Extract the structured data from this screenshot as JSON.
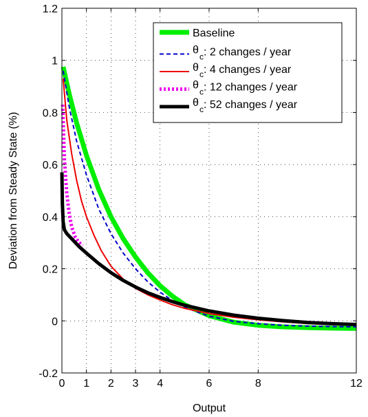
{
  "chart_data": {
    "type": "line",
    "xlabel": "Output",
    "ylabel": "Deviation from Steady State (%)",
    "xlim": [
      0,
      12
    ],
    "ylim": [
      -0.2,
      1.2
    ],
    "xticks": [
      0,
      1,
      2,
      3,
      4,
      6,
      8,
      12
    ],
    "yticks": [
      -0.2,
      0,
      0.2,
      0.4,
      0.6,
      0.8,
      1,
      1.2
    ],
    "xtick_labels": [
      "0",
      "1",
      "2",
      "3",
      "4",
      "6",
      "8",
      "12"
    ],
    "ytick_labels": [
      "-0.2",
      "0",
      "0.2",
      "0.4",
      "0.6",
      "0.8",
      "1",
      "1.2"
    ],
    "grid": "dotted",
    "legend_position": "top-right",
    "series": [
      {
        "name": "Baseline",
        "style": "solid-thick",
        "color": "#00ee00",
        "x": [
          0.05,
          0.3,
          0.6,
          1.0,
          1.5,
          2.0,
          2.5,
          3.0,
          3.5,
          4.0,
          4.5,
          5.0,
          6.0,
          7.0,
          8.0,
          9.0,
          10.0,
          11.0,
          12.0
        ],
        "y": [
          0.975,
          0.87,
          0.76,
          0.635,
          0.505,
          0.4,
          0.315,
          0.245,
          0.185,
          0.135,
          0.095,
          0.062,
          0.02,
          -0.005,
          -0.017,
          -0.023,
          -0.026,
          -0.028,
          -0.029
        ]
      },
      {
        "name": "2 changes / year",
        "style": "dashed",
        "color": "#0000cc",
        "x": [
          0.05,
          0.3,
          0.6,
          1.0,
          1.5,
          2.0,
          2.5,
          3.0,
          3.5,
          4.0,
          4.5,
          5.0,
          6.0,
          7.0,
          8.0,
          9.0,
          10.0,
          11.0,
          12.0
        ],
        "y": [
          0.96,
          0.82,
          0.69,
          0.56,
          0.43,
          0.335,
          0.26,
          0.2,
          0.15,
          0.11,
          0.078,
          0.052,
          0.018,
          -0.002,
          -0.011,
          -0.017,
          -0.02,
          -0.022,
          -0.023
        ]
      },
      {
        "name": "4 changes / year",
        "style": "solid",
        "color": "#ee0000",
        "x": [
          0.05,
          0.2,
          0.4,
          0.6,
          0.8,
          1.0,
          1.3,
          1.6,
          2.0,
          2.5,
          3.0,
          3.5,
          4.0,
          4.5,
          5.0,
          6.0,
          7.0,
          8.0,
          9.0,
          10.0,
          11.0,
          12.0
        ],
        "y": [
          0.93,
          0.77,
          0.64,
          0.54,
          0.46,
          0.4,
          0.33,
          0.27,
          0.21,
          0.16,
          0.125,
          0.1,
          0.08,
          0.062,
          0.048,
          0.028,
          0.014,
          0.004,
          -0.004,
          -0.01,
          -0.014,
          -0.016
        ]
      },
      {
        "name": "12 changes / year",
        "style": "dotted-thick",
        "color": "#ee00ee",
        "x": [
          0.03,
          0.1,
          0.2,
          0.3,
          0.4,
          0.55,
          0.7,
          0.85
        ],
        "y": [
          0.83,
          0.62,
          0.49,
          0.41,
          0.36,
          0.32,
          0.3,
          0.29
        ]
      },
      {
        "name": "52 changes / year",
        "style": "solid-thick",
        "color": "#000000",
        "x": [
          0.0,
          0.02,
          0.05,
          0.1,
          0.2,
          0.4,
          0.7,
          1.0,
          1.5,
          2.0,
          2.5,
          3.0,
          3.5,
          4.0,
          4.5,
          5.0,
          6.0,
          7.0,
          8.0,
          9.0,
          10.0,
          11.0,
          12.0
        ],
        "y": [
          0.57,
          0.45,
          0.38,
          0.35,
          0.335,
          0.315,
          0.285,
          0.26,
          0.22,
          0.185,
          0.155,
          0.13,
          0.108,
          0.09,
          0.074,
          0.06,
          0.038,
          0.022,
          0.01,
          0.001,
          -0.006,
          -0.011,
          -0.014
        ]
      }
    ],
    "legend": {
      "entries": [
        {
          "prefix": "",
          "sub": "",
          "text": "Baseline"
        },
        {
          "prefix": "θ",
          "sub": "c",
          "text": " : 2 changes / year"
        },
        {
          "prefix": "θ",
          "sub": "c",
          "text": " : 4 changes / year"
        },
        {
          "prefix": "θ",
          "sub": "c",
          "text": " : 12 changes / year"
        },
        {
          "prefix": "θ",
          "sub": "c",
          "text": " : 52 changes / year"
        }
      ]
    }
  }
}
